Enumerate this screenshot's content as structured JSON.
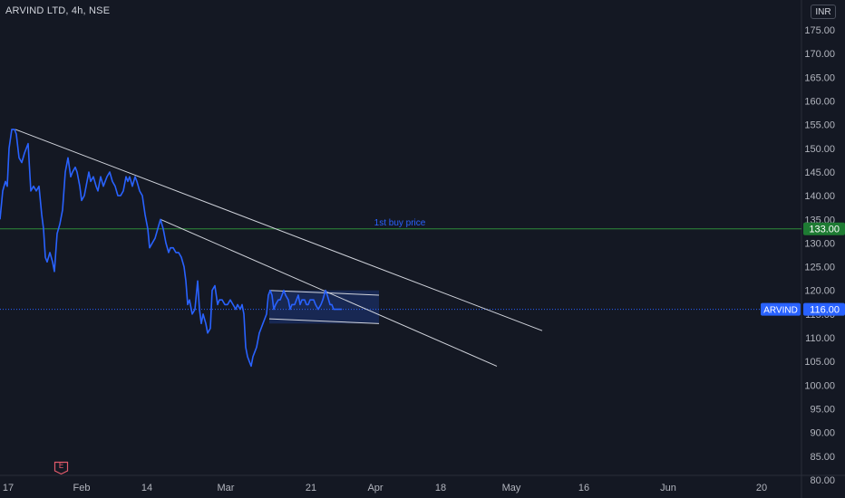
{
  "header": {
    "symbol_title": "ARVIND LTD, 4h, NSE",
    "currency": "INR"
  },
  "earnings_marker": {
    "label": "E",
    "icon": "earnings-flag-icon"
  },
  "chart_data": {
    "type": "line",
    "title": "ARVIND LTD, 4h, NSE",
    "xlabel": "",
    "ylabel": "",
    "ylim": [
      77.5,
      177.5
    ],
    "xlim": [
      0,
      932
    ],
    "grid": false,
    "legend": "none",
    "y_ticks": [
      80,
      85,
      90,
      95,
      100,
      105,
      110,
      115,
      120,
      125,
      130,
      135,
      140,
      145,
      150,
      155,
      160,
      165,
      170,
      175
    ],
    "y_tick_labels": [
      "80.00",
      "85.00",
      "90.00",
      "95.00",
      "100.00",
      "105.00",
      "110.00",
      "115.00",
      "120.00",
      "125.00",
      "130.00",
      "135.00",
      "140.00",
      "145.00",
      "150.00",
      "155.00",
      "160.00",
      "165.00",
      "170.00",
      "175.00"
    ],
    "x_ticks": [
      {
        "label": "17",
        "x": 9
      },
      {
        "label": "Feb",
        "x": 90
      },
      {
        "label": "14",
        "x": 162
      },
      {
        "label": "Mar",
        "x": 249
      },
      {
        "label": "21",
        "x": 343
      },
      {
        "label": "Apr",
        "x": 414
      },
      {
        "label": "18",
        "x": 486
      },
      {
        "label": "May",
        "x": 564
      },
      {
        "label": "16",
        "x": 644
      },
      {
        "label": "Jun",
        "x": 737
      },
      {
        "label": "20",
        "x": 840
      }
    ],
    "series": [
      {
        "color": "#2962ff",
        "points": [
          [
            0,
            135
          ],
          [
            3,
            141
          ],
          [
            6,
            143
          ],
          [
            8,
            142
          ],
          [
            10,
            150
          ],
          [
            13,
            154
          ],
          [
            16,
            154
          ],
          [
            18,
            153
          ],
          [
            21,
            148
          ],
          [
            24,
            147
          ],
          [
            27,
            149
          ],
          [
            31,
            151
          ],
          [
            34,
            141
          ],
          [
            37,
            142
          ],
          [
            40,
            141
          ],
          [
            43,
            142
          ],
          [
            46,
            136
          ],
          [
            48,
            133
          ],
          [
            50,
            127
          ],
          [
            52,
            126
          ],
          [
            55,
            128
          ],
          [
            58,
            126
          ],
          [
            60,
            124
          ],
          [
            63,
            132
          ],
          [
            66,
            134
          ],
          [
            69,
            137
          ],
          [
            72,
            145
          ],
          [
            75,
            148
          ],
          [
            78,
            144
          ],
          [
            80,
            145
          ],
          [
            83,
            146
          ],
          [
            85,
            145
          ],
          [
            88,
            142
          ],
          [
            90,
            139
          ],
          [
            93,
            140
          ],
          [
            96,
            143
          ],
          [
            98,
            145
          ],
          [
            100,
            143
          ],
          [
            103,
            144
          ],
          [
            106,
            142
          ],
          [
            108,
            141
          ],
          [
            111,
            144
          ],
          [
            114,
            142
          ],
          [
            116,
            143
          ],
          [
            118,
            144
          ],
          [
            121,
            145
          ],
          [
            124,
            143
          ],
          [
            127,
            142
          ],
          [
            130,
            140
          ],
          [
            133,
            140
          ],
          [
            136,
            141
          ],
          [
            139,
            144
          ],
          [
            141,
            143
          ],
          [
            143,
            144
          ],
          [
            146,
            142
          ],
          [
            149,
            144
          ],
          [
            151,
            143
          ],
          [
            154,
            141
          ],
          [
            157,
            140
          ],
          [
            160,
            136
          ],
          [
            163,
            133
          ],
          [
            165,
            129
          ],
          [
            168,
            130
          ],
          [
            171,
            131
          ],
          [
            174,
            133
          ],
          [
            177,
            135
          ],
          [
            180,
            133
          ],
          [
            183,
            130
          ],
          [
            186,
            128
          ],
          [
            188,
            129
          ],
          [
            191,
            129
          ],
          [
            194,
            128
          ],
          [
            197,
            128
          ],
          [
            200,
            127
          ],
          [
            203,
            125
          ],
          [
            205,
            122
          ],
          [
            207,
            117
          ],
          [
            209,
            118
          ],
          [
            212,
            115
          ],
          [
            215,
            116
          ],
          [
            218,
            122
          ],
          [
            220,
            116
          ],
          [
            222,
            113
          ],
          [
            224,
            115
          ],
          [
            227,
            113
          ],
          [
            229,
            111
          ],
          [
            232,
            112
          ],
          [
            234,
            120
          ],
          [
            237,
            121
          ],
          [
            240,
            117
          ],
          [
            242,
            118
          ],
          [
            245,
            118
          ],
          [
            248,
            117
          ],
          [
            251,
            117
          ],
          [
            254,
            118
          ],
          [
            257,
            117
          ],
          [
            260,
            116
          ],
          [
            262,
            117
          ],
          [
            265,
            116
          ],
          [
            267,
            117
          ],
          [
            269,
            115
          ],
          [
            271,
            108
          ],
          [
            273,
            106
          ],
          [
            275,
            105
          ],
          [
            277,
            104
          ],
          [
            279,
            106
          ],
          [
            281,
            107
          ],
          [
            283,
            108
          ],
          [
            286,
            111
          ],
          [
            288,
            112
          ],
          [
            290,
            113
          ],
          [
            292,
            114
          ],
          [
            294,
            115
          ],
          [
            296,
            119
          ],
          [
            298,
            120
          ],
          [
            300,
            119
          ],
          [
            302,
            116
          ],
          [
            304,
            117
          ],
          [
            307,
            118
          ],
          [
            309,
            118
          ],
          [
            311,
            119
          ],
          [
            313,
            120
          ],
          [
            315,
            119
          ],
          [
            318,
            118
          ],
          [
            320,
            116
          ],
          [
            322,
            117
          ],
          [
            325,
            117
          ],
          [
            327,
            118
          ],
          [
            329,
            119
          ],
          [
            331,
            117
          ],
          [
            333,
            118
          ],
          [
            336,
            118
          ],
          [
            338,
            117
          ],
          [
            340,
            117
          ],
          [
            342,
            118
          ],
          [
            344,
            118
          ],
          [
            346,
            118
          ],
          [
            348,
            117
          ],
          [
            351,
            116
          ],
          [
            354,
            117
          ],
          [
            356,
            118
          ],
          [
            359,
            120
          ],
          [
            361,
            119
          ],
          [
            364,
            117
          ],
          [
            366,
            117
          ],
          [
            368,
            116
          ],
          [
            371,
            116
          ],
          [
            374,
            116
          ],
          [
            377,
            116
          ]
        ]
      }
    ],
    "horizontal_lines": [
      {
        "value": 133.0,
        "color": "#2e8b3a",
        "label": "133.00",
        "label_bg": "#1e7b33"
      },
      {
        "value": 116.0,
        "color": "#2962ff",
        "dotted": true,
        "label": "116.00",
        "symbol": "ARVIND",
        "label_bg": "#2962ff"
      }
    ],
    "trendlines": [
      {
        "from": [
          17,
          154
        ],
        "to": [
          598,
          111.5
        ],
        "color": "#d1d4dc"
      },
      {
        "from": [
          177,
          135
        ],
        "to": [
          548,
          104
        ],
        "color": "#d1d4dc"
      },
      {
        "from": [
          297,
          120
        ],
        "to": [
          418,
          119
        ],
        "color": "#d1d4dc"
      },
      {
        "from": [
          297,
          114
        ],
        "to": [
          418,
          113
        ],
        "color": "#d1d4dc"
      }
    ],
    "channel_box": {
      "x0": 297,
      "x1": 418,
      "y_top": 120,
      "y_bottom": 113,
      "fill": "#2962ff"
    },
    "annotations": [
      {
        "text": "1st buy price",
        "x": 441,
        "y": 134.5,
        "color": "#2962ff"
      }
    ]
  }
}
